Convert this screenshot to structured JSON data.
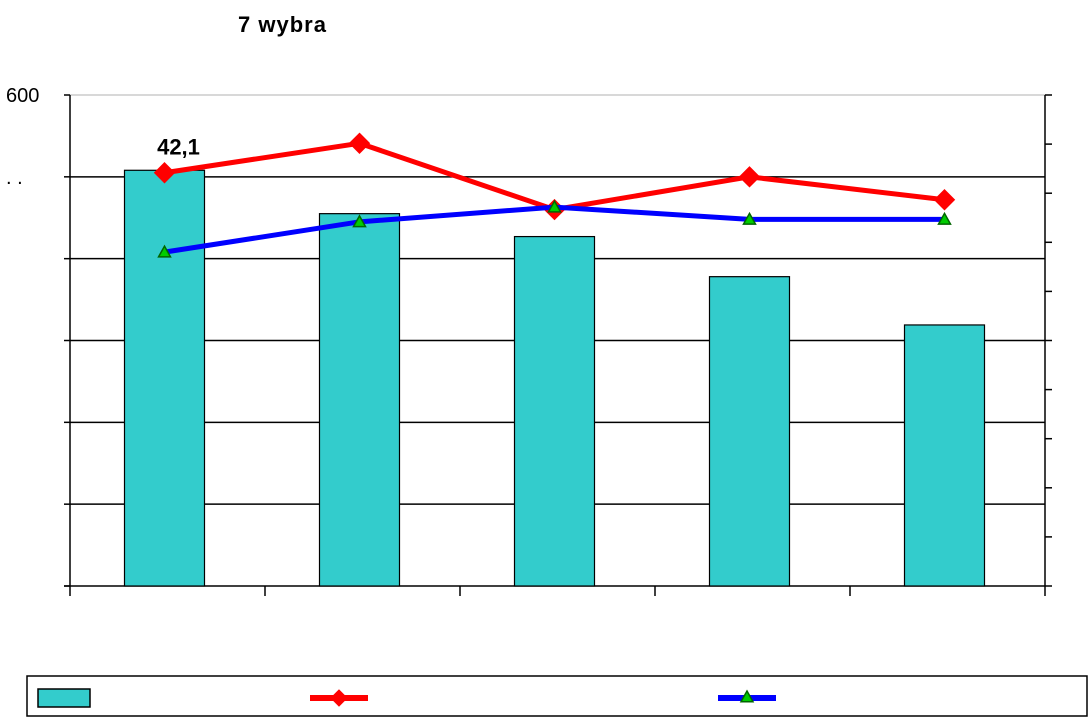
{
  "chart_data": {
    "type": "bar",
    "title": "7 wybra",
    "categories": [
      "",
      "",
      "",
      "",
      ""
    ],
    "ylim": [
      0,
      600
    ],
    "y_tick_labels": [
      {
        "value": 600,
        "label": "600"
      },
      {
        "value": 500,
        "label": ". ."
      }
    ],
    "grid": true,
    "legend_position": "bottom",
    "bar_series": {
      "values": [
        508,
        455,
        427,
        378,
        319
      ],
      "color": "#33CCCC",
      "data_labels": [
        {
          "index": 0,
          "text": "42,1"
        }
      ]
    },
    "line_series": [
      {
        "values": [
          505,
          541,
          460,
          500,
          472
        ],
        "color": "#FF0000",
        "marker": "diamond",
        "marker_color": "#FF0000"
      },
      {
        "values": [
          408,
          445,
          463,
          448,
          448
        ],
        "color": "#0000FF",
        "marker": "triangle",
        "marker_color": "#00CC00"
      }
    ],
    "right_axis": {
      "ticks": 11
    },
    "legend": [
      {
        "kind": "bar",
        "color": "#33CCCC"
      },
      {
        "kind": "line",
        "color": "#FF0000",
        "marker": "diamond"
      },
      {
        "kind": "line",
        "color": "#0000FF",
        "marker": "triangle",
        "marker_color": "#00CC00"
      }
    ]
  }
}
